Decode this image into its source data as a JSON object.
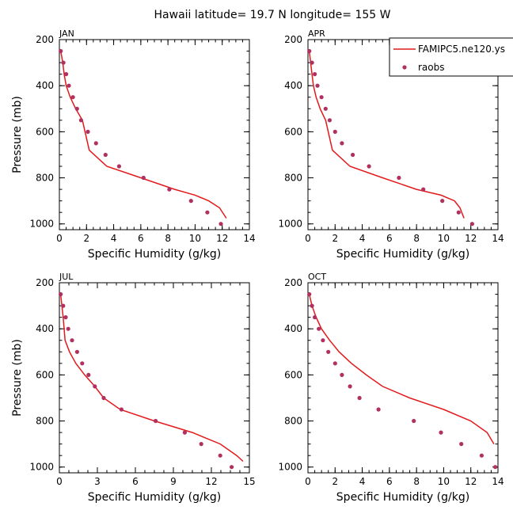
{
  "figure": {
    "title": "Hawaii  latitude= 19.7 N longitude= 155 W",
    "colors": {
      "model": "#e31a1c",
      "obs": "#b03060"
    }
  },
  "legend": {
    "model_label": "FAMIPC5.ne120.ys",
    "obs_label": "raobs"
  },
  "chart_data": [
    {
      "type": "line",
      "panel_label": "JAN",
      "xlabel": "Specific Humidity (g/kg)",
      "ylabel": "Pressure (mb)",
      "xlim": [
        0,
        14
      ],
      "ylim": [
        200,
        1025
      ],
      "y_inverted": true,
      "xticks": [
        0,
        2,
        4,
        6,
        8,
        10,
        12,
        14
      ],
      "yticks": [
        200,
        400,
        600,
        800,
        1000
      ],
      "series": [
        {
          "name": "FAMIPC5.ne120.ys",
          "kind": "line",
          "x": [
            0.1,
            0.25,
            0.35,
            0.5,
            0.8,
            1.2,
            1.7,
            2.2,
            3.5,
            6.0,
            8.5,
            10.0,
            11.0,
            11.8,
            12.3
          ],
          "y": [
            250,
            300,
            350,
            400,
            450,
            500,
            550,
            680,
            750,
            800,
            850,
            875,
            900,
            930,
            975
          ]
        },
        {
          "name": "raobs",
          "kind": "scatter",
          "x": [
            0.1,
            0.3,
            0.5,
            0.7,
            1.0,
            1.3,
            1.6,
            2.1,
            2.7,
            3.4,
            4.4,
            6.2,
            8.1,
            9.7,
            10.9,
            11.9
          ],
          "y": [
            250,
            300,
            350,
            400,
            450,
            500,
            550,
            600,
            650,
            700,
            750,
            800,
            850,
            900,
            950,
            1000
          ]
        }
      ]
    },
    {
      "type": "line",
      "panel_label": "APR",
      "xlabel": "Specific Humidity (g/kg)",
      "ylabel": "",
      "xlim": [
        0,
        14
      ],
      "ylim": [
        200,
        1025
      ],
      "y_inverted": true,
      "xticks": [
        0,
        2,
        4,
        6,
        8,
        10,
        12,
        14
      ],
      "yticks": [
        200,
        400,
        600,
        800,
        1000
      ],
      "series": [
        {
          "name": "FAMIPC5.ne120.ys",
          "kind": "line",
          "x": [
            0.1,
            0.2,
            0.3,
            0.4,
            0.6,
            0.9,
            1.3,
            1.8,
            3.1,
            5.5,
            8.0,
            9.8,
            10.8,
            11.2,
            11.5
          ],
          "y": [
            250,
            300,
            350,
            400,
            450,
            500,
            550,
            680,
            750,
            800,
            850,
            875,
            900,
            930,
            975
          ]
        },
        {
          "name": "raobs",
          "kind": "scatter",
          "x": [
            0.1,
            0.3,
            0.5,
            0.7,
            1.0,
            1.3,
            1.6,
            2.0,
            2.5,
            3.3,
            4.5,
            6.7,
            8.5,
            9.9,
            11.1,
            12.1
          ],
          "y": [
            250,
            300,
            350,
            400,
            450,
            500,
            550,
            600,
            650,
            700,
            750,
            800,
            850,
            900,
            950,
            1000
          ]
        }
      ]
    },
    {
      "type": "line",
      "panel_label": "JUL",
      "xlabel": "Specific Humidity (g/kg)",
      "ylabel": "Pressure (mb)",
      "xlim": [
        0,
        15
      ],
      "ylim": [
        200,
        1025
      ],
      "y_inverted": true,
      "xticks": [
        0,
        3,
        6,
        9,
        12,
        15
      ],
      "yticks": [
        200,
        400,
        600,
        800,
        1000
      ],
      "series": [
        {
          "name": "FAMIPC5.ne120.ys",
          "kind": "line",
          "x": [
            0.1,
            0.2,
            0.3,
            0.45,
            0.8,
            1.3,
            2.0,
            2.8,
            3.5,
            4.8,
            7.5,
            10.5,
            12.7,
            14.0,
            14.5
          ],
          "y": [
            250,
            300,
            350,
            450,
            500,
            550,
            600,
            650,
            700,
            750,
            800,
            850,
            900,
            950,
            975
          ]
        },
        {
          "name": "raobs",
          "kind": "scatter",
          "x": [
            0.1,
            0.3,
            0.5,
            0.7,
            1.0,
            1.4,
            1.8,
            2.3,
            2.8,
            3.5,
            4.9,
            7.6,
            9.9,
            11.2,
            12.7,
            13.6
          ],
          "y": [
            250,
            300,
            350,
            400,
            450,
            500,
            550,
            600,
            650,
            700,
            750,
            800,
            850,
            900,
            950,
            1000
          ]
        }
      ]
    },
    {
      "type": "line",
      "panel_label": "OCT",
      "xlabel": "Specific Humidity (g/kg)",
      "ylabel": "",
      "xlim": [
        0,
        14
      ],
      "ylim": [
        200,
        1025
      ],
      "y_inverted": true,
      "xticks": [
        0,
        2,
        4,
        6,
        8,
        10,
        12,
        14
      ],
      "yticks": [
        200,
        400,
        600,
        800,
        1000
      ],
      "series": [
        {
          "name": "FAMIPC5.ne120.ys",
          "kind": "line",
          "x": [
            0.1,
            0.3,
            0.6,
            1.0,
            1.6,
            2.3,
            3.2,
            4.3,
            5.5,
            7.5,
            10.0,
            12.0,
            13.2,
            13.7
          ],
          "y": [
            250,
            300,
            350,
            400,
            450,
            500,
            550,
            600,
            650,
            700,
            750,
            800,
            850,
            900
          ]
        },
        {
          "name": "raobs",
          "kind": "scatter",
          "x": [
            0.1,
            0.3,
            0.5,
            0.8,
            1.1,
            1.5,
            2.0,
            2.5,
            3.1,
            3.8,
            5.2,
            7.8,
            9.8,
            11.3,
            12.8,
            13.8
          ],
          "y": [
            250,
            300,
            350,
            400,
            450,
            500,
            550,
            600,
            650,
            700,
            750,
            800,
            850,
            900,
            950,
            1000
          ]
        }
      ]
    }
  ]
}
